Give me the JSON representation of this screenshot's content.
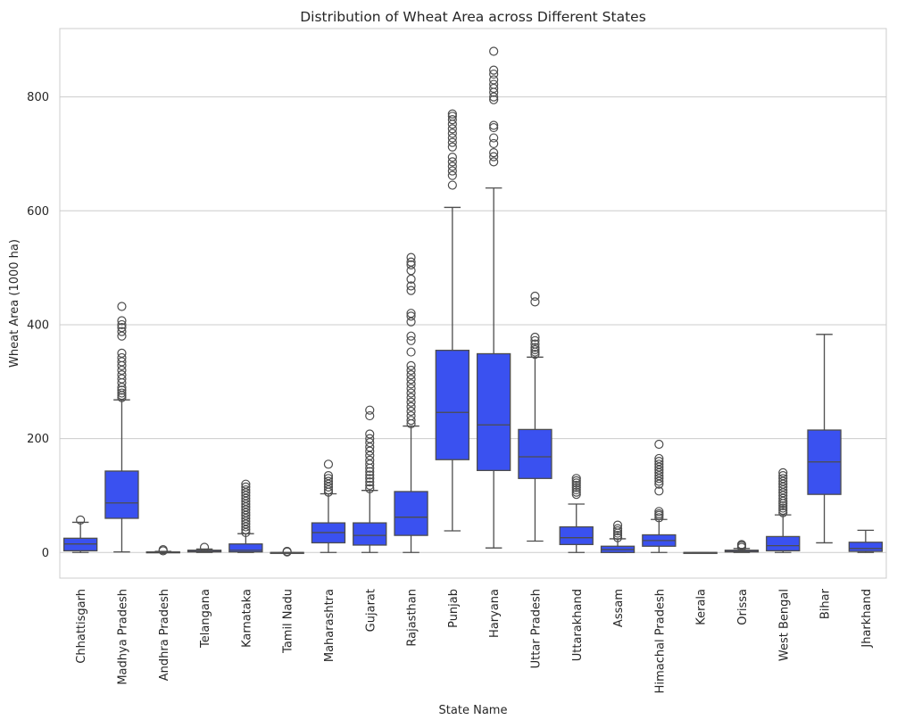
{
  "chart_data": {
    "type": "box",
    "title": "Distribution of Wheat Area across Different States",
    "xlabel": "State Name",
    "ylabel": "Wheat Area (1000 ha)",
    "ylim": [
      -45,
      920
    ],
    "yticks": [
      0,
      200,
      400,
      600,
      800
    ],
    "grid": "horizontal",
    "legend": "none",
    "box_color": "#3a51f0",
    "line_color": "#4d4d4d",
    "grid_color": "#cccccc",
    "boxes": [
      {
        "category": "Chhattisgarh",
        "whisker_low": 0,
        "q1": 3,
        "median": 15,
        "q3": 25,
        "whisker_high": 53,
        "outliers": [
          57
        ]
      },
      {
        "category": "Madhya Pradesh",
        "whisker_low": 1,
        "q1": 60,
        "median": 87,
        "q3": 143,
        "whisker_high": 268,
        "outliers": [
          272,
          276,
          280,
          285,
          290,
          298,
          305,
          312,
          320,
          328,
          335,
          342,
          350,
          380,
          388,
          395,
          400,
          407,
          432
        ]
      },
      {
        "category": "Andhra Pradesh",
        "whisker_low": 0,
        "q1": 0,
        "median": 0,
        "q3": 1,
        "whisker_high": 2,
        "outliers": [
          3,
          5
        ]
      },
      {
        "category": "Telangana",
        "whisker_low": 0,
        "q1": 1,
        "median": 2,
        "q3": 4,
        "whisker_high": 6,
        "outliers": [
          9
        ]
      },
      {
        "category": "Karnataka",
        "whisker_low": 0,
        "q1": 1,
        "median": 4,
        "q3": 15,
        "whisker_high": 33,
        "outliers": [
          35,
          40,
          45,
          50,
          55,
          60,
          65,
          70,
          75,
          80,
          85,
          90,
          95,
          100,
          105,
          110,
          115,
          120
        ]
      },
      {
        "category": "Tamil Nadu",
        "whisker_low": 0,
        "q1": 0,
        "median": 0,
        "q3": 0,
        "whisker_high": 0,
        "outliers": [
          1,
          2
        ]
      },
      {
        "category": "Maharashtra",
        "whisker_low": 0,
        "q1": 17,
        "median": 35,
        "q3": 52,
        "whisker_high": 103,
        "outliers": [
          106,
          110,
          115,
          120,
          125,
          130,
          135,
          155
        ]
      },
      {
        "category": "Gujarat",
        "whisker_low": 0,
        "q1": 13,
        "median": 30,
        "q3": 52,
        "whisker_high": 109,
        "outliers": [
          112,
          118,
          124,
          130,
          136,
          142,
          148,
          155,
          162,
          170,
          178,
          185,
          193,
          200,
          208,
          240,
          250
        ]
      },
      {
        "category": "Rajasthan",
        "whisker_low": 0,
        "q1": 30,
        "median": 62,
        "q3": 107,
        "whisker_high": 222,
        "outliers": [
          226,
          232,
          240,
          248,
          256,
          264,
          272,
          280,
          288,
          296,
          304,
          312,
          320,
          328,
          352,
          372,
          380,
          405,
          415,
          420,
          460,
          468,
          480,
          495,
          505,
          510,
          518
        ]
      },
      {
        "category": "Punjab",
        "whisker_low": 38,
        "q1": 163,
        "median": 246,
        "q3": 355,
        "whisker_high": 606,
        "outliers": [
          645,
          662,
          670,
          678,
          686,
          694,
          712,
          720,
          728,
          736,
          744,
          752,
          760,
          766,
          770
        ]
      },
      {
        "category": "Haryana",
        "whisker_low": 8,
        "q1": 144,
        "median": 224,
        "q3": 349,
        "whisker_high": 640,
        "outliers": [
          686,
          695,
          702,
          718,
          728,
          746,
          750,
          795,
          800,
          808,
          815,
          822,
          830,
          840,
          847,
          880
        ]
      },
      {
        "category": "Uttar Pradesh",
        "whisker_low": 20,
        "q1": 130,
        "median": 168,
        "q3": 216,
        "whisker_high": 343,
        "outliers": [
          348,
          352,
          356,
          360,
          366,
          372,
          378,
          440,
          450
        ]
      },
      {
        "category": "Uttarakhand",
        "whisker_low": 0,
        "q1": 14,
        "median": 26,
        "q3": 45,
        "whisker_high": 85,
        "outliers": [
          102,
          106,
          110,
          114,
          118,
          122,
          126,
          130
        ]
      },
      {
        "category": "Assam",
        "whisker_low": 0,
        "q1": 0,
        "median": 5,
        "q3": 11,
        "whisker_high": 24,
        "outliers": [
          26,
          30,
          34,
          38,
          42,
          48
        ]
      },
      {
        "category": "Himachal Pradesh",
        "whisker_low": 0,
        "q1": 11,
        "median": 21,
        "q3": 31,
        "whisker_high": 58,
        "outliers": [
          61,
          65,
          68,
          72,
          108,
          120,
          125,
          130,
          135,
          140,
          145,
          150,
          155,
          160,
          165,
          190
        ]
      },
      {
        "category": "Kerala",
        "whisker_low": 0,
        "q1": 0,
        "median": 0,
        "q3": 0,
        "whisker_high": 0,
        "outliers": []
      },
      {
        "category": "Orissa",
        "whisker_low": 0,
        "q1": 1,
        "median": 2,
        "q3": 4,
        "whisker_high": 7,
        "outliers": [
          9,
          12,
          14
        ]
      },
      {
        "category": "West Bengal",
        "whisker_low": 0,
        "q1": 3,
        "median": 12,
        "q3": 28,
        "whisker_high": 66,
        "outliers": [
          70,
          74,
          78,
          82,
          86,
          90,
          95,
          100,
          105,
          110,
          115,
          120,
          125,
          130,
          135,
          140
        ]
      },
      {
        "category": "Bihar",
        "whisker_low": 17,
        "q1": 102,
        "median": 159,
        "q3": 215,
        "whisker_high": 383,
        "outliers": []
      },
      {
        "category": "Jharkhand",
        "whisker_low": 0,
        "q1": 2,
        "median": 7,
        "q3": 18,
        "whisker_high": 39,
        "outliers": []
      }
    ]
  }
}
